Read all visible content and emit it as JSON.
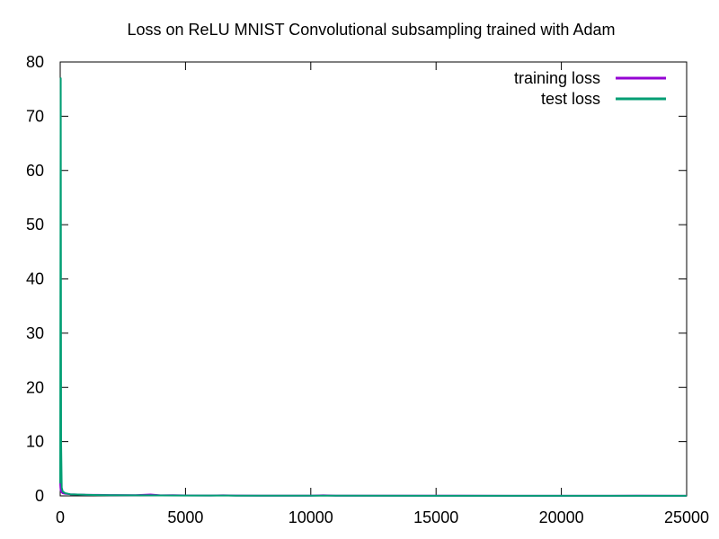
{
  "chart_data": {
    "type": "line",
    "title": "Loss on ReLU MNIST Convolutional subsampling trained with Adam",
    "xlabel": "",
    "ylabel": "",
    "xlim": [
      0,
      25000
    ],
    "ylim": [
      0,
      80
    ],
    "x_ticks": [
      "0",
      "5000",
      "10000",
      "15000",
      "20000",
      "25000"
    ],
    "y_ticks": [
      "0",
      "10",
      "20",
      "30",
      "40",
      "50",
      "60",
      "70",
      "80"
    ],
    "grid": false,
    "legend_position": "top-right",
    "series": [
      {
        "name": "training loss",
        "color": "#9400d3",
        "points": [
          [
            0,
            2.3
          ],
          [
            10,
            1.5
          ],
          [
            25,
            0.9
          ],
          [
            50,
            0.7
          ],
          [
            100,
            0.5
          ],
          [
            200,
            0.4
          ],
          [
            400,
            0.3
          ],
          [
            700,
            0.25
          ],
          [
            1000,
            0.2
          ],
          [
            1500,
            0.18
          ],
          [
            2000,
            0.15
          ],
          [
            3000,
            0.12
          ],
          [
            3600,
            0.25
          ],
          [
            4000,
            0.1
          ],
          [
            4500,
            0.12
          ],
          [
            5000,
            0.08
          ],
          [
            6000,
            0.07
          ],
          [
            6500,
            0.1
          ],
          [
            7000,
            0.06
          ],
          [
            8000,
            0.05
          ],
          [
            9000,
            0.05
          ],
          [
            10000,
            0.05
          ],
          [
            10500,
            0.1
          ],
          [
            11000,
            0.05
          ],
          [
            12000,
            0.04
          ],
          [
            14000,
            0.04
          ],
          [
            16000,
            0.04
          ],
          [
            18000,
            0.03
          ],
          [
            20000,
            0.03
          ],
          [
            22000,
            0.03
          ],
          [
            23000,
            0.05
          ],
          [
            25000,
            0.03
          ]
        ]
      },
      {
        "name": "test loss",
        "color": "#009e73",
        "points": [
          [
            0,
            2.3
          ],
          [
            10,
            40
          ],
          [
            20,
            77
          ],
          [
            35,
            10
          ],
          [
            60,
            1.5
          ],
          [
            100,
            0.8
          ],
          [
            200,
            0.5
          ],
          [
            400,
            0.3
          ],
          [
            700,
            0.25
          ],
          [
            1000,
            0.2
          ],
          [
            1500,
            0.15
          ],
          [
            2000,
            0.12
          ],
          [
            3000,
            0.1
          ],
          [
            4000,
            0.08
          ],
          [
            5000,
            0.07
          ],
          [
            7000,
            0.05
          ],
          [
            10000,
            0.04
          ],
          [
            15000,
            0.03
          ],
          [
            20000,
            0.03
          ],
          [
            25000,
            0.02
          ]
        ]
      }
    ]
  }
}
